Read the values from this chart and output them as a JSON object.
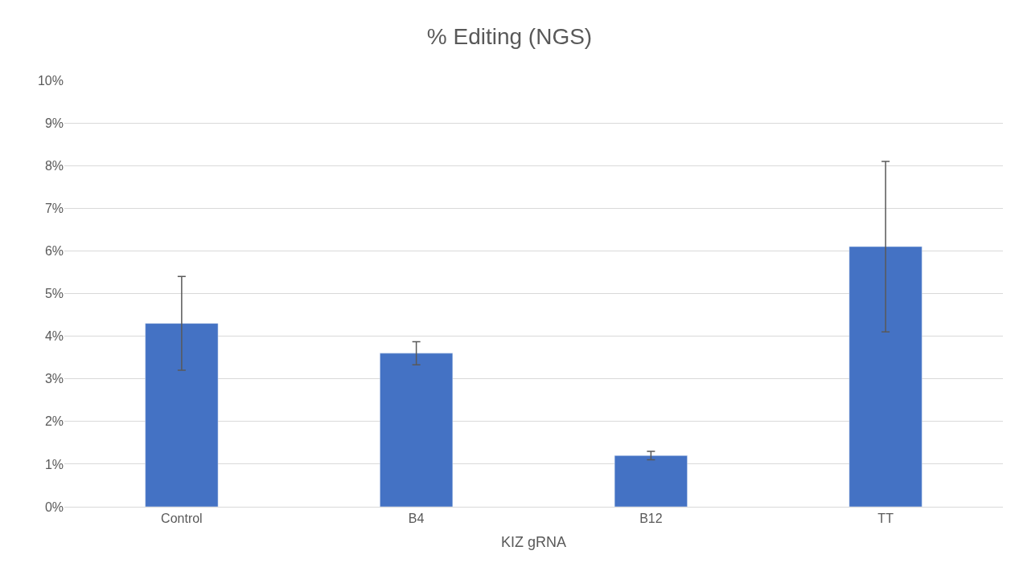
{
  "chart_data": {
    "type": "bar",
    "title": "% Editing (NGS)",
    "xlabel": "KIZ gRNA",
    "categories": [
      "Control",
      "B4",
      "B12",
      "TT"
    ],
    "values": [
      4.3,
      3.6,
      1.2,
      6.1
    ],
    "errors": [
      1.1,
      0.27,
      0.1,
      2.0
    ],
    "color": "#4472c4",
    "ylim": [
      0,
      10
    ],
    "yticks": [
      {
        "value": 0,
        "label": "0%"
      },
      {
        "value": 1,
        "label": "1%"
      },
      {
        "value": 2,
        "label": "2%"
      },
      {
        "value": 3,
        "label": "3%"
      },
      {
        "value": 4,
        "label": "4%"
      },
      {
        "value": 5,
        "label": "5%"
      },
      {
        "value": 6,
        "label": "6%"
      },
      {
        "value": 7,
        "label": "7%"
      },
      {
        "value": 8,
        "label": "8%"
      },
      {
        "value": 9,
        "label": "9%"
      },
      {
        "value": 10,
        "label": "10%"
      }
    ],
    "grid": "y",
    "legend": false
  }
}
